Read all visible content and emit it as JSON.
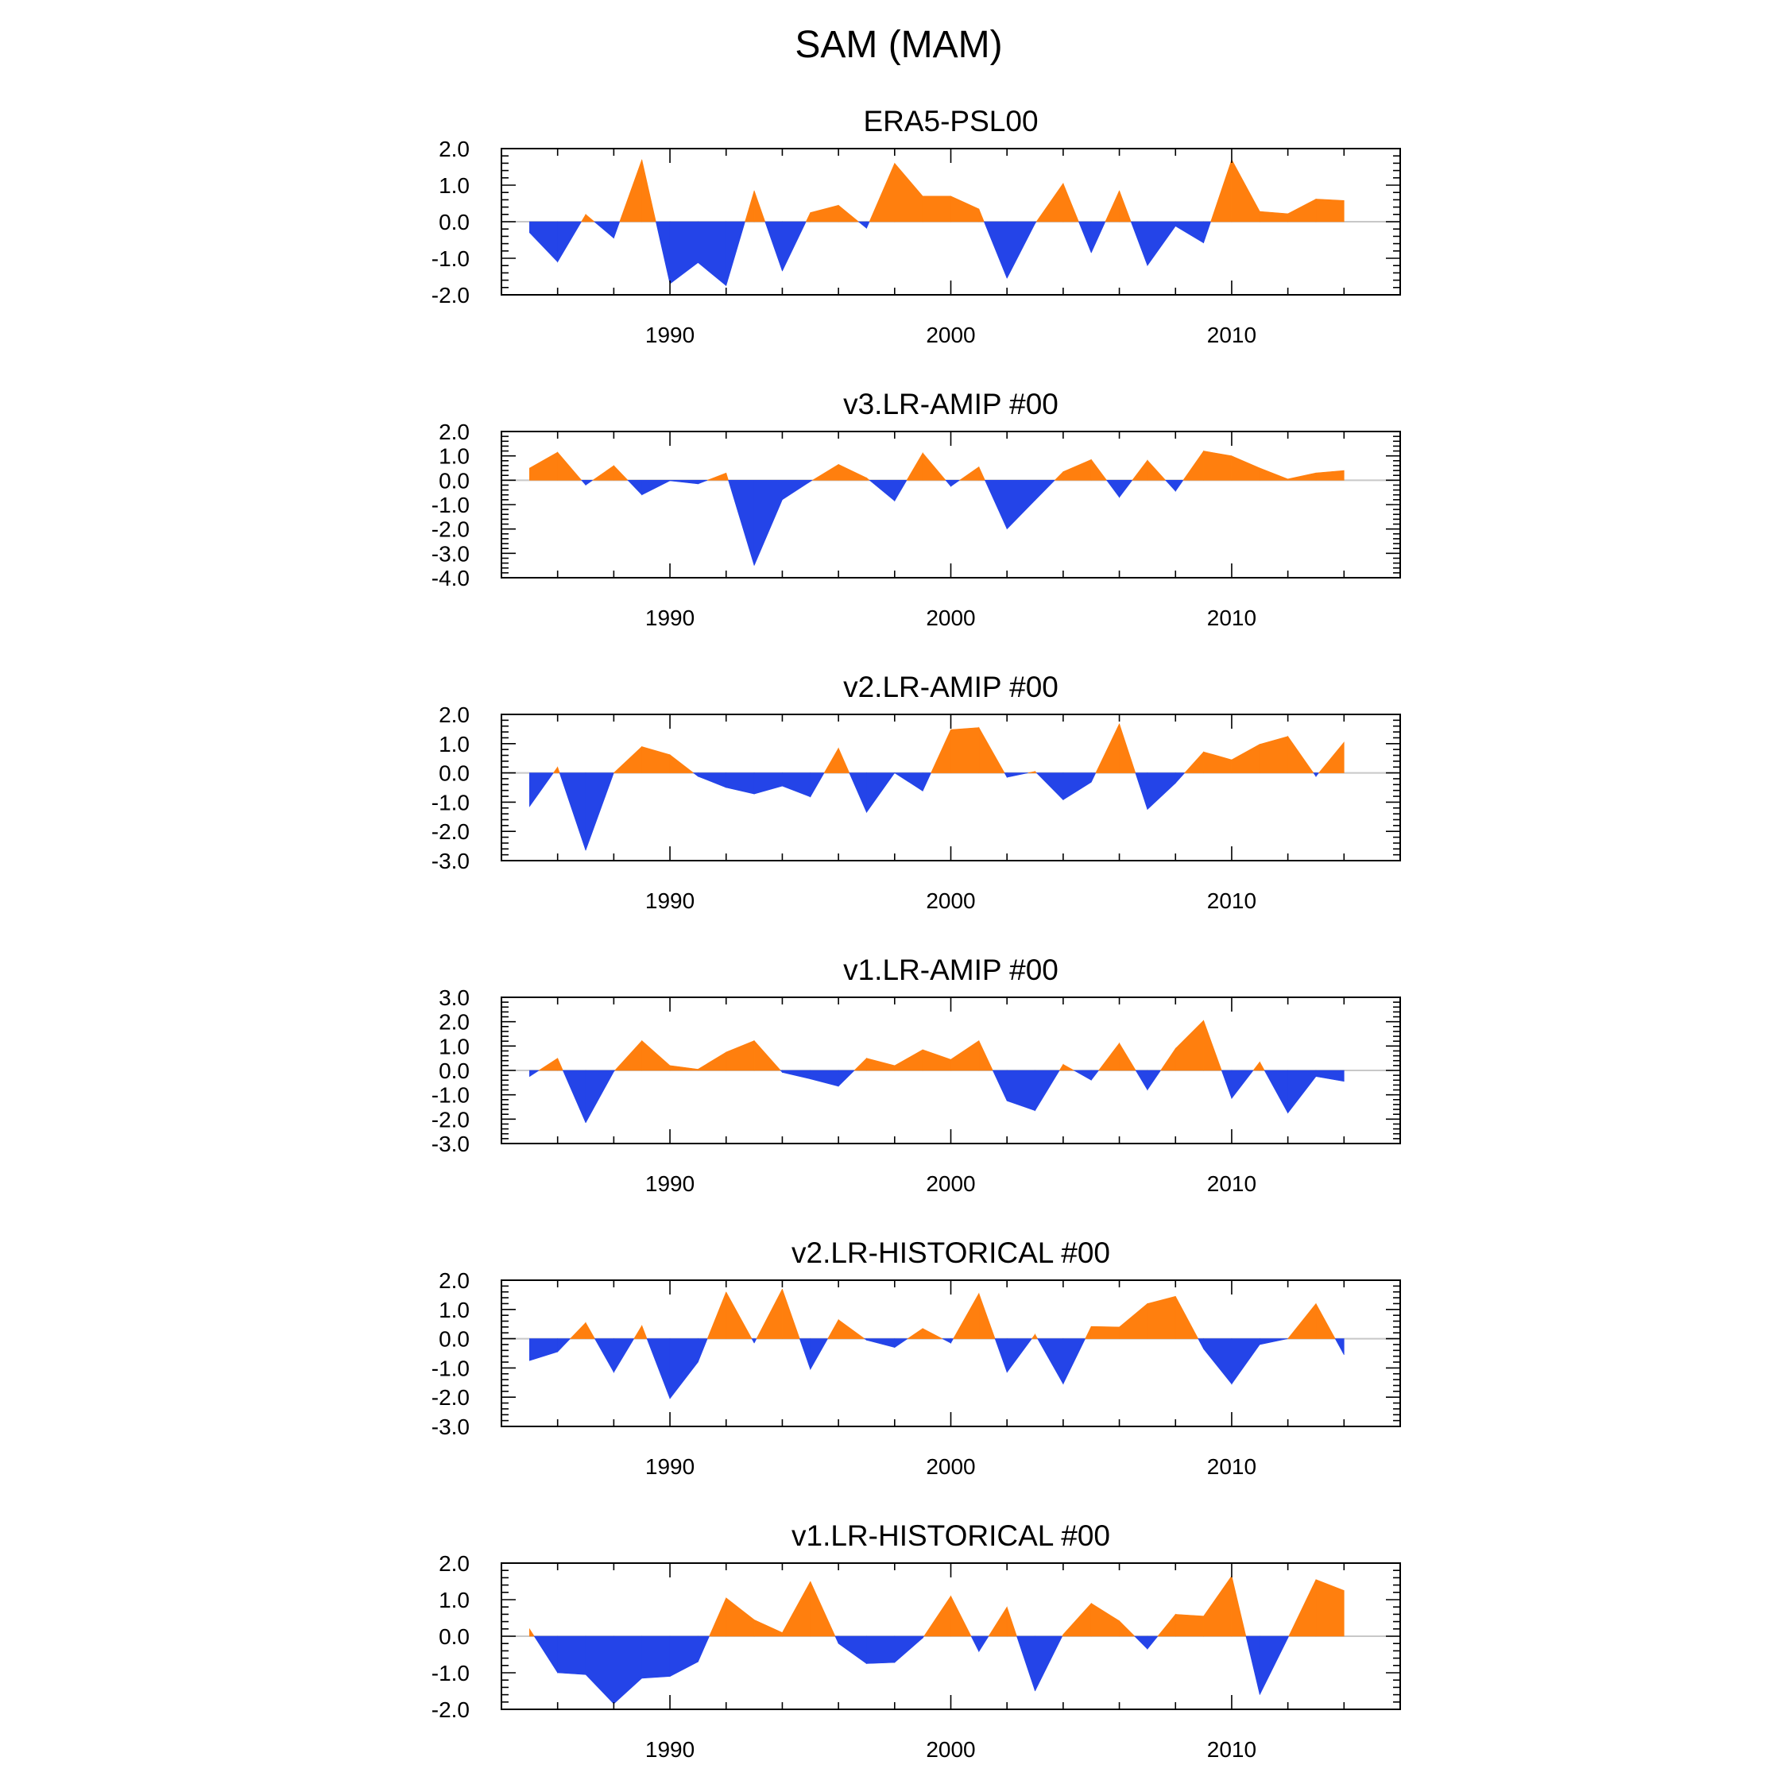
{
  "figure": {
    "title": "SAM (MAM)"
  },
  "colors": {
    "positive": "#ff7f0e",
    "negative": "#2444e8",
    "axis": "#000000",
    "zero_line": "#c8c8c8"
  },
  "chart_data": [
    {
      "type": "area",
      "title": "ERA5-PSL00",
      "xlabel": "",
      "ylabel": "",
      "xlim": [
        1984,
        2016
      ],
      "ylim": [
        -2,
        2
      ],
      "y_ticks": [
        -2,
        -1,
        0,
        1,
        2
      ],
      "y_tick_labels": [
        "-2.0",
        "-1.0",
        "0.0",
        "1.0",
        "2.0"
      ],
      "x_ticks": [
        1990,
        2000,
        2010
      ],
      "x_tick_labels": [
        "1990",
        "2000",
        "2010"
      ],
      "grid": false,
      "years": [
        1985,
        1986,
        1987,
        1988,
        1989,
        1990,
        1991,
        1992,
        1993,
        1994,
        1995,
        1996,
        1997,
        1998,
        1999,
        2000,
        2001,
        2002,
        2003,
        2004,
        2005,
        2006,
        2007,
        2008,
        2009,
        2010,
        2011,
        2012,
        2013,
        2014
      ],
      "values": [
        -0.3,
        -1.1,
        0.2,
        -0.45,
        1.7,
        -1.7,
        -1.12,
        -1.75,
        0.85,
        -1.35,
        0.25,
        0.45,
        -0.18,
        1.6,
        0.7,
        0.7,
        0.35,
        -1.55,
        -0.05,
        1.05,
        -0.85,
        0.85,
        -1.2,
        -0.12,
        -0.58,
        1.7,
        0.28,
        0.22,
        0.62,
        0.58
      ]
    },
    {
      "type": "area",
      "title": "v3.LR-AMIP  #00",
      "xlabel": "",
      "ylabel": "",
      "xlim": [
        1984,
        2016
      ],
      "ylim": [
        -4,
        2
      ],
      "y_ticks": [
        -4,
        -3,
        -2,
        -1,
        0,
        1,
        2
      ],
      "y_tick_labels": [
        "-4.0",
        "-3.0",
        "-2.0",
        "-1.0",
        "0.0",
        "1.0",
        "2.0"
      ],
      "x_ticks": [
        1990,
        2000,
        2010
      ],
      "x_tick_labels": [
        "1990",
        "2000",
        "2010"
      ],
      "grid": false,
      "years": [
        1985,
        1986,
        1987,
        1988,
        1989,
        1990,
        1991,
        1992,
        1993,
        1994,
        1995,
        1996,
        1997,
        1998,
        1999,
        2000,
        2001,
        2002,
        2003,
        2004,
        2005,
        2006,
        2007,
        2008,
        2009,
        2010,
        2011,
        2012,
        2013,
        2014
      ],
      "values": [
        0.5,
        1.15,
        -0.2,
        0.6,
        -0.6,
        -0.02,
        -0.15,
        0.3,
        -3.5,
        -0.8,
        -0.05,
        0.65,
        0.1,
        -0.85,
        1.12,
        -0.25,
        0.55,
        -2.0,
        -0.82,
        0.35,
        0.85,
        -0.7,
        0.82,
        -0.45,
        1.2,
        1.0,
        0.5,
        0.05,
        0.3,
        0.4
      ]
    },
    {
      "type": "area",
      "title": "v2.LR-AMIP  #00",
      "xlabel": "",
      "ylabel": "",
      "xlim": [
        1984,
        2016
      ],
      "ylim": [
        -3,
        2
      ],
      "y_ticks": [
        -3,
        -2,
        -1,
        0,
        1,
        2
      ],
      "y_tick_labels": [
        "-3.0",
        "-2.0",
        "-1.0",
        "0.0",
        "1.0",
        "2.0"
      ],
      "x_ticks": [
        1990,
        2000,
        2010
      ],
      "x_tick_labels": [
        "1990",
        "2000",
        "2010"
      ],
      "grid": false,
      "years": [
        1985,
        1986,
        1987,
        1988,
        1989,
        1990,
        1991,
        1992,
        1993,
        1994,
        1995,
        1996,
        1997,
        1998,
        1999,
        2000,
        2001,
        2002,
        2003,
        2004,
        2005,
        2006,
        2007,
        2008,
        2009,
        2010,
        2011,
        2012,
        2013,
        2014
      ],
      "values": [
        -1.15,
        0.2,
        -2.65,
        0.0,
        0.9,
        0.62,
        -0.12,
        -0.5,
        -0.72,
        -0.45,
        -0.82,
        0.85,
        -1.35,
        0.0,
        -0.62,
        1.48,
        1.55,
        -0.15,
        0.05,
        -0.92,
        -0.32,
        1.68,
        -1.25,
        -0.35,
        0.72,
        0.45,
        0.98,
        1.25,
        -0.12,
        1.05
      ]
    },
    {
      "type": "area",
      "title": "v1.LR-AMIP  #00",
      "xlabel": "",
      "ylabel": "",
      "xlim": [
        1984,
        2016
      ],
      "ylim": [
        -3,
        3
      ],
      "y_ticks": [
        -3,
        -2,
        -1,
        0,
        1,
        2,
        3
      ],
      "y_tick_labels": [
        "-3.0",
        "-2.0",
        "-1.0",
        "0.0",
        "1.0",
        "2.0",
        "3.0"
      ],
      "x_ticks": [
        1990,
        2000,
        2010
      ],
      "x_tick_labels": [
        "1990",
        "2000",
        "2010"
      ],
      "grid": false,
      "years": [
        1985,
        1986,
        1987,
        1988,
        1989,
        1990,
        1991,
        1992,
        1993,
        1994,
        1995,
        1996,
        1997,
        1998,
        1999,
        2000,
        2001,
        2002,
        2003,
        2004,
        2005,
        2006,
        2007,
        2008,
        2009,
        2010,
        2011,
        2012,
        2013,
        2014
      ],
      "values": [
        -0.25,
        0.5,
        -2.15,
        -0.05,
        1.22,
        0.2,
        0.05,
        0.75,
        1.22,
        -0.08,
        -0.35,
        -0.65,
        0.5,
        0.2,
        0.85,
        0.45,
        1.22,
        -1.25,
        -1.65,
        0.25,
        -0.4,
        1.12,
        -0.8,
        0.9,
        2.05,
        -1.15,
        0.35,
        -1.75,
        -0.25,
        -0.45
      ]
    },
    {
      "type": "area",
      "title": "v2.LR-HISTORICAL  #00",
      "xlabel": "",
      "ylabel": "",
      "xlim": [
        1984,
        2016
      ],
      "ylim": [
        -3,
        2
      ],
      "y_ticks": [
        -3,
        -2,
        -1,
        0,
        1,
        2
      ],
      "y_tick_labels": [
        "-3.0",
        "-2.0",
        "-1.0",
        "0.0",
        "1.0",
        "2.0"
      ],
      "x_ticks": [
        1990,
        2000,
        2010
      ],
      "x_tick_labels": [
        "1990",
        "2000",
        "2010"
      ],
      "grid": false,
      "years": [
        1985,
        1986,
        1987,
        1988,
        1989,
        1990,
        1991,
        1992,
        1993,
        1994,
        1995,
        1996,
        1997,
        1998,
        1999,
        2000,
        2001,
        2002,
        2003,
        2004,
        2005,
        2006,
        2007,
        2008,
        2009,
        2010,
        2011,
        2012,
        2013,
        2014
      ],
      "values": [
        -0.75,
        -0.45,
        0.55,
        -1.15,
        0.45,
        -2.05,
        -0.8,
        1.6,
        -0.15,
        1.7,
        -1.05,
        0.65,
        -0.05,
        -0.3,
        0.35,
        -0.15,
        1.55,
        -1.15,
        0.15,
        -1.55,
        0.42,
        0.4,
        1.2,
        1.45,
        -0.35,
        -1.55,
        -0.2,
        0.0,
        1.2,
        -0.55
      ]
    },
    {
      "type": "area",
      "title": "v1.LR-HISTORICAL  #00",
      "xlabel": "",
      "ylabel": "",
      "xlim": [
        1984,
        2016
      ],
      "ylim": [
        -2,
        2
      ],
      "y_ticks": [
        -2,
        -1,
        0,
        1,
        2
      ],
      "y_tick_labels": [
        "-2.0",
        "-1.0",
        "0.0",
        "1.0",
        "2.0"
      ],
      "x_ticks": [
        1990,
        2000,
        2010
      ],
      "x_tick_labels": [
        "1990",
        "2000",
        "2010"
      ],
      "grid": false,
      "years": [
        1985,
        1986,
        1987,
        1988,
        1989,
        1990,
        1991,
        1992,
        1993,
        1994,
        1995,
        1996,
        1997,
        1998,
        1999,
        2000,
        2001,
        2002,
        2003,
        2004,
        2005,
        2006,
        2007,
        2008,
        2009,
        2010,
        2011,
        2012,
        2013,
        2014
      ],
      "values": [
        0.2,
        -1.0,
        -1.05,
        -1.85,
        -1.15,
        -1.1,
        -0.7,
        1.05,
        0.45,
        0.1,
        1.5,
        -0.2,
        -0.75,
        -0.72,
        -0.05,
        1.1,
        -0.42,
        0.8,
        -1.5,
        0.05,
        0.9,
        0.42,
        -0.35,
        0.6,
        0.55,
        1.65,
        -1.6,
        -0.05,
        1.55,
        1.25
      ]
    }
  ]
}
